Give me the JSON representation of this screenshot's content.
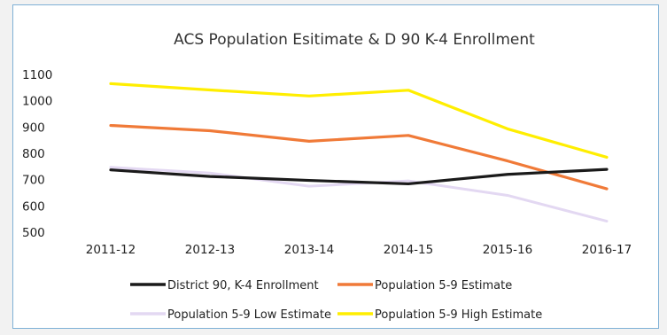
{
  "chart_data": {
    "type": "line",
    "title": "ACS Population Esitimate & D 90 K-4 Enrollment",
    "xlabel": "",
    "ylabel": "",
    "categories": [
      "2011-12",
      "2012-13",
      "2013-14",
      "2014-15",
      "2015-16",
      "2016-17"
    ],
    "ylim": [
      500,
      1100
    ],
    "yticks": [
      1100,
      1000,
      900,
      800,
      700,
      600,
      500
    ],
    "grid": false,
    "legend_position": "bottom",
    "series": [
      {
        "name": "District 90, K-4 Enrollment",
        "color": "#1a1a1a",
        "values": [
          737,
          712,
          697,
          684,
          720,
          739
        ]
      },
      {
        "name": "Population 5-9 Estimate",
        "color": "#f07a38",
        "values": [
          906,
          886,
          846,
          868,
          771,
          665
        ]
      },
      {
        "name": "Population 5-9 Low Estimate",
        "color": "#e3d8f2",
        "values": [
          747,
          725,
          675,
          695,
          640,
          542
        ]
      },
      {
        "name": "Population 5-9 High Estimate",
        "color": "#ffee00",
        "values": [
          1065,
          1041,
          1018,
          1040,
          893,
          785
        ]
      }
    ]
  }
}
